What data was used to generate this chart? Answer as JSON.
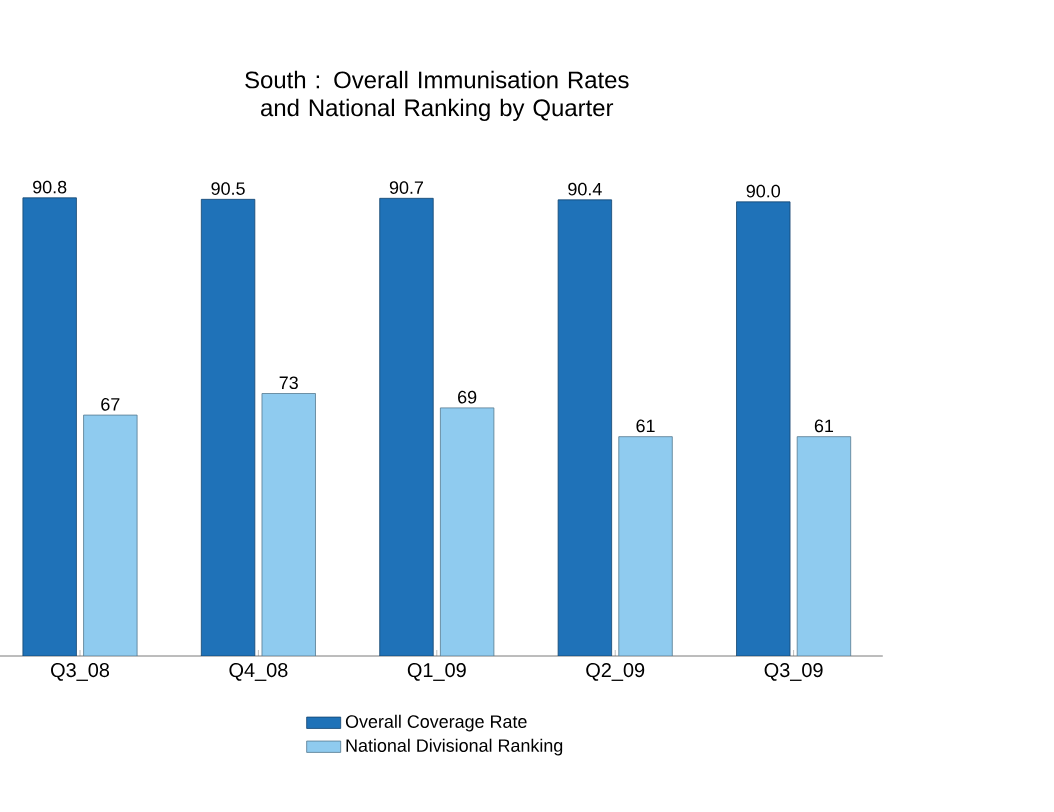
{
  "chart_data": {
    "type": "bar",
    "title": "South : Overall Immunisation Rates and National Ranking by Quarter",
    "categories": [
      "Q3_08",
      "Q4_08",
      "Q1_09",
      "Q2_09",
      "Q3_09"
    ],
    "series": [
      {
        "name": "Overall Coverage Rate",
        "color": "#1f72b8",
        "values": [
          90.8,
          90.5,
          90.7,
          90.4,
          90.0
        ],
        "value_labels": [
          "90.8",
          "90.5",
          "90.7",
          "90.4",
          "90.0"
        ]
      },
      {
        "name": "National Divisional Ranking",
        "color": "#8fcbef",
        "axis": "y2",
        "values": [
          67,
          73,
          69,
          61,
          61
        ],
        "value_labels": [
          "67",
          "73",
          "69",
          "61",
          "61"
        ]
      }
    ],
    "legend": "bottom",
    "tick_labels": "x"
  }
}
